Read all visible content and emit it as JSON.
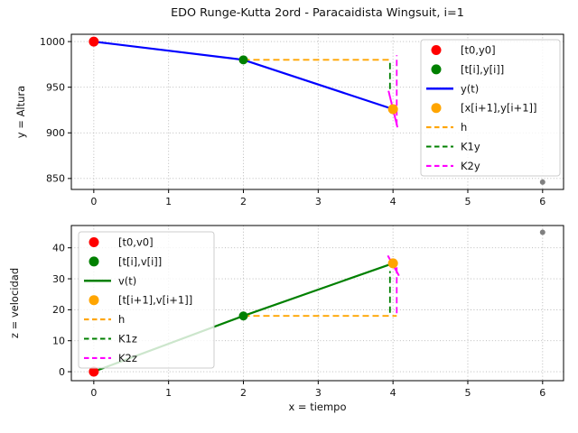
{
  "title": "EDO Runge-Kutta 2ord - Paracaidista Wingsuit, i=1",
  "palette": {
    "red": "#ff0000",
    "green": "#008000",
    "blue": "#0000ff",
    "orange": "#ffa500",
    "magenta": "#ff00ff",
    "gray": "#808080",
    "grid": "#b3b3b3",
    "axis": "#000000",
    "legend_border": "#cccccc"
  },
  "chart_data": [
    {
      "type": "line",
      "name": "altura",
      "xlabel": "",
      "ylabel": "y = Altura",
      "xlim": [
        -0.3,
        6.28
      ],
      "ylim": [
        838,
        1008
      ],
      "xticks": [
        0,
        1,
        2,
        3,
        4,
        5,
        6
      ],
      "yticks": [
        850,
        900,
        950,
        1000
      ],
      "grid": "dotted",
      "legend_position": "upper-right",
      "series": [
        {
          "label": "y(t)",
          "name": "y-t-line",
          "color": "#0000ff",
          "dash": "",
          "width": 2.2,
          "points": [
            [
              0,
              1000
            ],
            [
              2,
              980
            ],
            [
              4,
              926
            ]
          ],
          "legend": true
        },
        {
          "label": "h",
          "name": "h-step-line",
          "color": "#ffa500",
          "dash": "7,4",
          "width": 1.8,
          "points": [
            [
              2,
              980
            ],
            [
              3.96,
              980
            ]
          ],
          "legend": true
        },
        {
          "label": "K1y",
          "name": "k1y-line",
          "color": "#008000",
          "dash": "7,4",
          "width": 1.8,
          "points": [
            [
              3.96,
              948
            ],
            [
              3.96,
              980
            ]
          ],
          "legend": true
        },
        {
          "label": "K2y",
          "name": "k2y-line",
          "color": "#ff00ff",
          "dash": "7,4",
          "width": 1.8,
          "points": [
            [
              4.05,
              908
            ],
            [
              4.05,
              985
            ]
          ],
          "legend": true
        },
        {
          "label": "",
          "name": "k2y-tangent-segment",
          "color": "#ff00ff",
          "dash": "",
          "width": 2,
          "points": [
            [
              3.94,
              946
            ],
            [
              4.06,
              906
            ]
          ],
          "legend": false
        }
      ],
      "markers": [
        {
          "label": "[t0,y0]",
          "name": "initial-point",
          "color": "#ff0000",
          "point": [
            0,
            1000
          ],
          "r": 5.5,
          "legend": true
        },
        {
          "label": "[t[i],y[i]]",
          "name": "current-point",
          "color": "#008000",
          "point": [
            2,
            980
          ],
          "r": 5,
          "legend": true
        },
        {
          "label": "[x[i+1],y[i+1]]",
          "name": "next-point",
          "color": "#ffa500",
          "point": [
            4,
            926
          ],
          "r": 5.5,
          "legend": true
        },
        {
          "label": "",
          "name": "future-point",
          "color": "#808080",
          "point": [
            6,
            846
          ],
          "r": 3,
          "legend": false
        }
      ],
      "legend_order": [
        "m0",
        "m1",
        "s0",
        "m2",
        "s1",
        "s2",
        "s3"
      ]
    },
    {
      "type": "line",
      "name": "velocidad",
      "xlabel": "x = tiempo",
      "ylabel": "z = velocidad",
      "xlim": [
        -0.3,
        6.28
      ],
      "ylim": [
        -2.9,
        47.2
      ],
      "xticks": [
        0,
        1,
        2,
        3,
        4,
        5,
        6
      ],
      "yticks": [
        0,
        10,
        20,
        30,
        40
      ],
      "grid": "dotted",
      "legend_position": "upper-left",
      "series": [
        {
          "label": "v(t)",
          "name": "v-t-line",
          "color": "#008000",
          "dash": "",
          "width": 2.2,
          "points": [
            [
              0,
              0
            ],
            [
              2,
              18
            ],
            [
              4,
              35
            ]
          ],
          "legend": true
        },
        {
          "label": "h",
          "name": "h-step-line",
          "color": "#ffa500",
          "dash": "7,4",
          "width": 1.8,
          "points": [
            [
              2,
              18
            ],
            [
              4.05,
              18
            ]
          ],
          "legend": true
        },
        {
          "label": "K1z",
          "name": "k1z-line",
          "color": "#008000",
          "dash": "7,4",
          "width": 1.8,
          "points": [
            [
              3.96,
              19
            ],
            [
              3.96,
              32.5
            ]
          ],
          "legend": true
        },
        {
          "label": "K2z",
          "name": "k2z-line",
          "color": "#ff00ff",
          "dash": "7,4",
          "width": 1.8,
          "points": [
            [
              4.05,
              18.9
            ],
            [
              4.05,
              34
            ]
          ],
          "legend": true
        },
        {
          "label": "",
          "name": "k2z-tangent-segment",
          "color": "#ff00ff",
          "dash": "",
          "width": 2,
          "points": [
            [
              3.93,
              37.5
            ],
            [
              4.08,
              31
            ]
          ],
          "legend": false
        }
      ],
      "markers": [
        {
          "label": "[t0,v0]",
          "name": "initial-point",
          "color": "#ff0000",
          "point": [
            0,
            0
          ],
          "r": 5.5,
          "legend": true
        },
        {
          "label": "[t[i],v[i]]",
          "name": "current-point",
          "color": "#008000",
          "point": [
            2,
            18
          ],
          "r": 5,
          "legend": true
        },
        {
          "label": "[t[i+1],v[i+1]]",
          "name": "next-point",
          "color": "#ffa500",
          "point": [
            4,
            35
          ],
          "r": 5.5,
          "legend": true
        },
        {
          "label": "",
          "name": "future-point",
          "color": "#808080",
          "point": [
            6,
            45
          ],
          "r": 3,
          "legend": false
        }
      ],
      "legend_order": [
        "m0",
        "m1",
        "s0",
        "m2",
        "s1",
        "s2",
        "s3"
      ]
    }
  ]
}
